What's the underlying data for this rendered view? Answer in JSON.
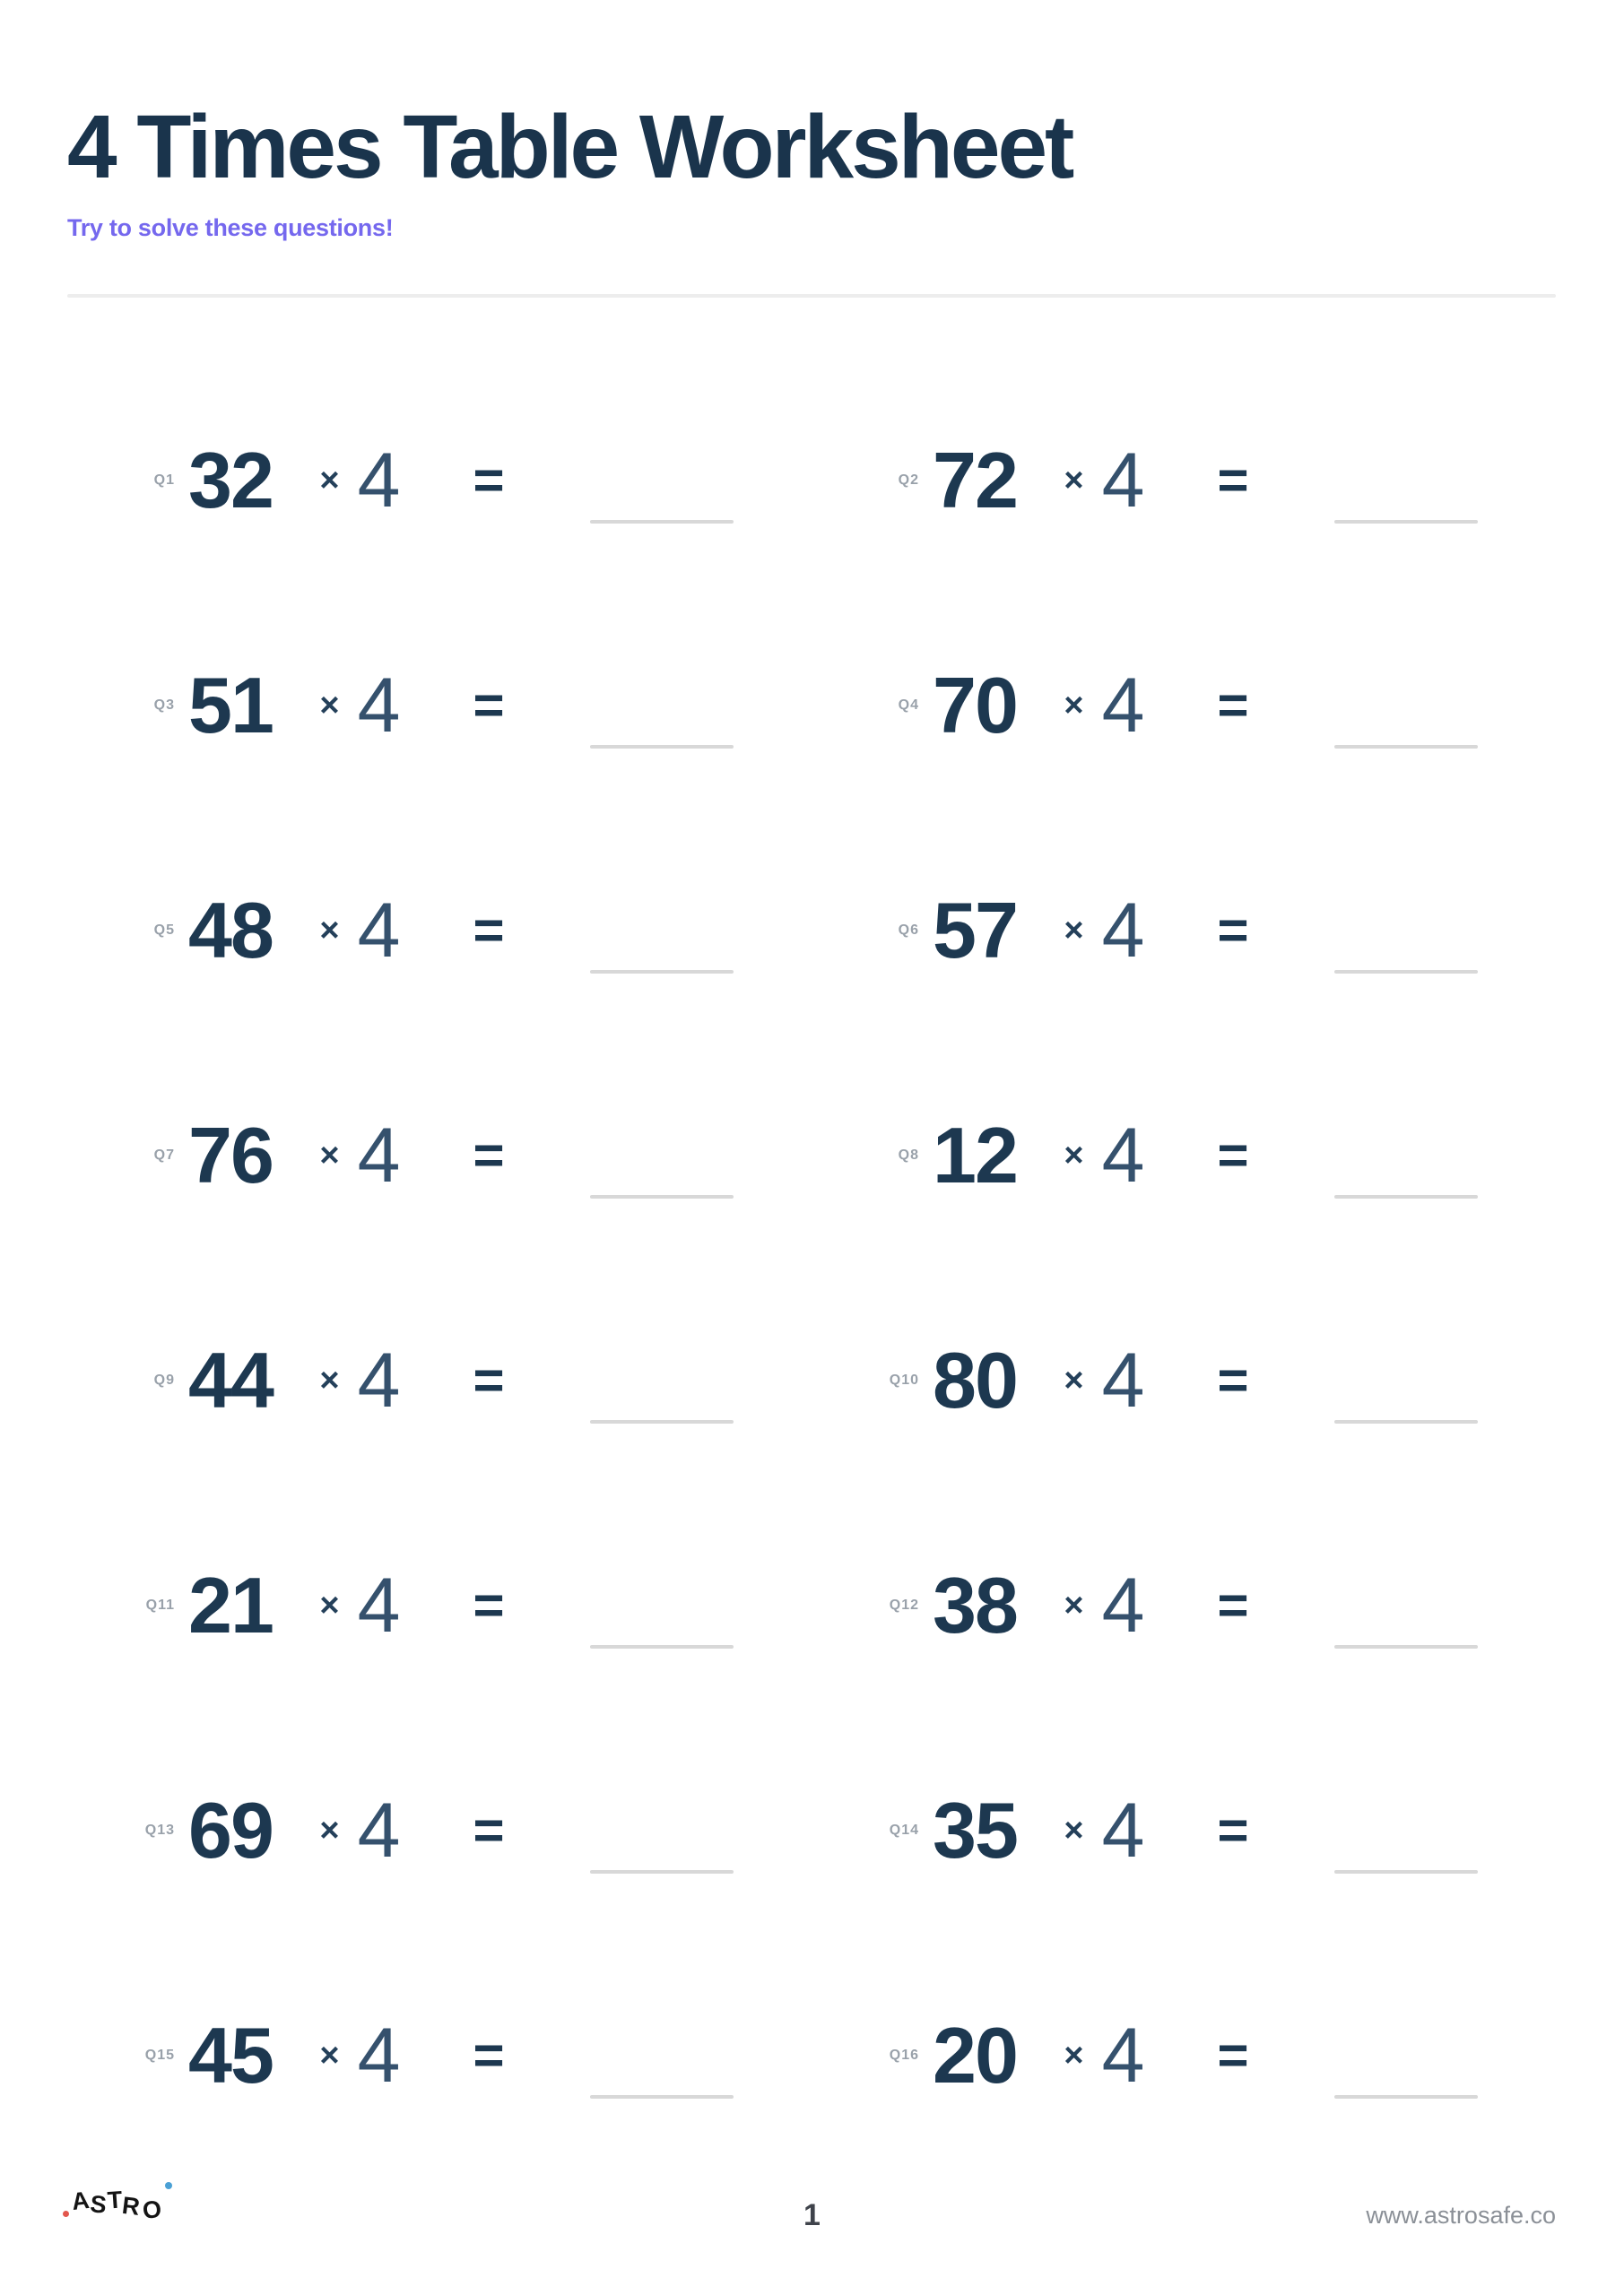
{
  "header": {
    "title": "4 Times Table Worksheet",
    "subtitle": "Try to solve these questions!"
  },
  "worksheet": {
    "operator": "×",
    "multiplier": "4",
    "equals_sign": "=",
    "questions": [
      {
        "label": "Q1",
        "operand": "32"
      },
      {
        "label": "Q2",
        "operand": "72"
      },
      {
        "label": "Q3",
        "operand": "51"
      },
      {
        "label": "Q4",
        "operand": "70"
      },
      {
        "label": "Q5",
        "operand": "48"
      },
      {
        "label": "Q6",
        "operand": "57"
      },
      {
        "label": "Q7",
        "operand": "76"
      },
      {
        "label": "Q8",
        "operand": "12"
      },
      {
        "label": "Q9",
        "operand": "44"
      },
      {
        "label": "Q10",
        "operand": "80"
      },
      {
        "label": "Q11",
        "operand": "21"
      },
      {
        "label": "Q12",
        "operand": "38"
      },
      {
        "label": "Q13",
        "operand": "69"
      },
      {
        "label": "Q14",
        "operand": "35"
      },
      {
        "label": "Q15",
        "operand": "45"
      },
      {
        "label": "Q16",
        "operand": "20"
      }
    ]
  },
  "footer": {
    "logo_letters": [
      "A",
      "S",
      "T",
      "R",
      "O"
    ],
    "page_number": "1",
    "website": "www.astrosafe.co"
  },
  "colors": {
    "ink_navy": "#1d3850",
    "title_navy": "#1a344c",
    "accent_purple": "#7568ee",
    "answer_line_gray": "#d8d8d8",
    "label_gray": "#99a1aa",
    "logo_dot_red": "#e2574d",
    "logo_dot_blue": "#4aa0d5"
  }
}
